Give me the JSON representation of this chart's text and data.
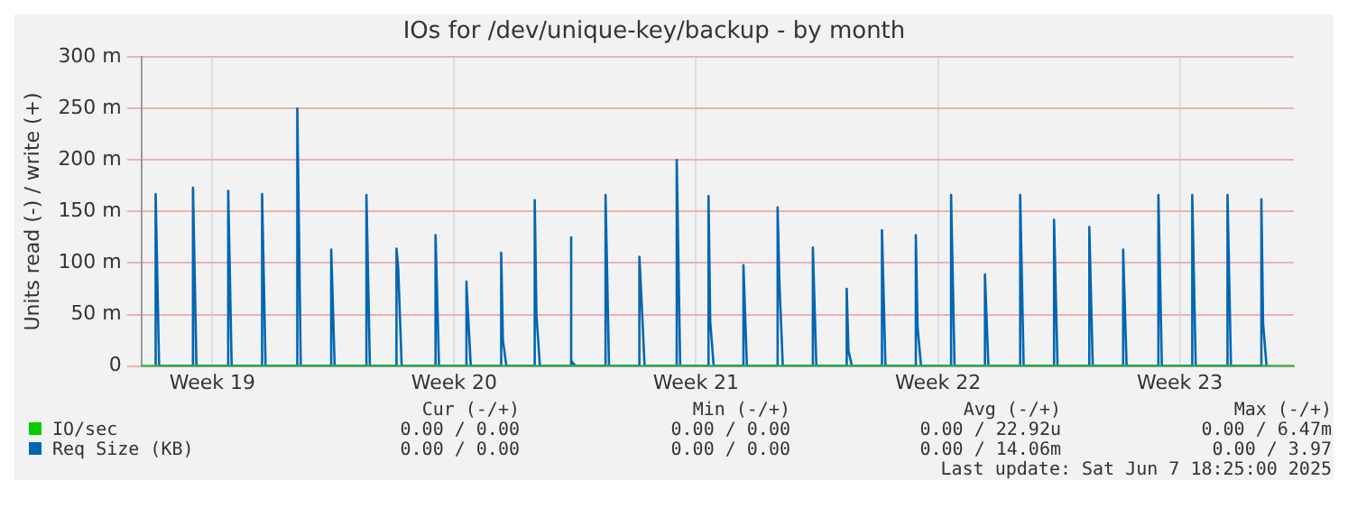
{
  "chart_data": {
    "type": "line",
    "title": "IOs for /dev/unique-key/backup - by month",
    "ylabel": "Units read (-) / write (+)",
    "xlim": [
      "2025-05-05T10:48",
      "2025-06-07T19:12"
    ],
    "xticks": [
      {
        "value": "2025-05-07T12:00",
        "label": "Week 19"
      },
      {
        "value": "2025-05-14T12:00",
        "label": "Week 20"
      },
      {
        "value": "2025-05-21T12:00",
        "label": "Week 21"
      },
      {
        "value": "2025-05-28T12:00",
        "label": "Week 22"
      },
      {
        "value": "2025-06-04T12:00",
        "label": "Week 23"
      }
    ],
    "ylim": [
      0,
      300
    ],
    "yticks": [
      0,
      {
        "value": 50,
        "label": "50 m"
      },
      {
        "value": 100,
        "label": "100 m"
      },
      {
        "value": 150,
        "label": "150 m"
      },
      {
        "value": 200,
        "label": "200 m"
      },
      {
        "value": 250,
        "label": "250 m"
      },
      {
        "value": 300,
        "label": "300 m"
      }
    ],
    "grid": true,
    "marker": "none",
    "line_style": "solid",
    "series": [
      {
        "name": "IO/sec",
        "color": "#00cc00",
        "x": [
          "2025-05-05T10:48",
          "2025-06-07T19:12"
        ],
        "values": [
          0,
          0
        ]
      },
      {
        "name": "Req Size (KB)",
        "color": "#0066b3",
        "x": [
          "2025-05-05T20:38",
          "2025-05-05T20:38",
          "2025-05-05T23:02",
          "2025-05-06T22:34",
          "2025-05-06T22:34",
          "2025-05-07T00:58",
          "2025-05-07T23:02",
          "2025-05-07T23:02",
          "2025-05-08T01:26",
          "2025-05-08T22:34",
          "2025-05-08T22:34",
          "2025-05-09T00:58",
          "2025-05-09T23:02",
          "2025-05-09T23:02",
          "2025-05-10T01:26",
          "2025-05-10T22:34",
          "2025-05-10T22:34",
          "2025-05-11T00:58",
          "2025-05-11T23:02",
          "2025-05-11T23:02",
          "2025-05-12T01:26",
          "2025-05-12T19:55",
          "2025-05-12T19:55",
          "2025-05-12T21:07",
          "2025-05-12T23:31",
          "2025-05-13T23:02",
          "2025-05-13T23:02",
          "2025-05-14T01:26",
          "2025-05-14T19:55",
          "2025-05-14T19:55",
          "2025-05-14T21:07",
          "2025-05-14T23:31",
          "2025-05-15T20:38",
          "2025-05-15T20:38",
          "2025-05-15T21:50",
          "2025-05-16T00:14",
          "2025-05-16T19:55",
          "2025-05-16T19:55",
          "2025-05-16T21:07",
          "2025-05-16T23:31",
          "2025-05-17T20:38",
          "2025-05-17T20:38",
          "2025-05-17T21:50",
          "2025-05-18T00:14",
          "2025-05-18T21:07",
          "2025-05-18T21:07",
          "2025-05-18T23:31",
          "2025-05-19T20:38",
          "2025-05-19T20:38",
          "2025-05-19T21:50",
          "2025-05-20T00:14",
          "2025-05-20T22:34",
          "2025-05-20T22:34",
          "2025-05-21T00:58",
          "2025-05-21T20:38",
          "2025-05-21T20:38",
          "2025-05-21T21:50",
          "2025-05-22T00:14",
          "2025-05-22T20:53",
          "2025-05-22T20:53",
          "2025-05-22T23:17",
          "2025-05-23T20:38",
          "2025-05-23T20:38",
          "2025-05-23T21:50",
          "2025-05-24T00:14",
          "2025-05-24T21:07",
          "2025-05-24T21:07",
          "2025-05-24T23:31",
          "2025-05-25T20:38",
          "2025-05-25T20:38",
          "2025-05-25T21:50",
          "2025-05-26T00:14",
          "2025-05-26T21:07",
          "2025-05-26T21:07",
          "2025-05-26T23:31",
          "2025-05-27T20:38",
          "2025-05-27T20:38",
          "2025-05-27T21:50",
          "2025-05-28T00:14",
          "2025-05-28T21:07",
          "2025-05-28T21:07",
          "2025-05-28T23:31",
          "2025-05-29T20:38",
          "2025-05-29T20:38",
          "2025-05-29T23:02",
          "2025-05-30T21:07",
          "2025-05-30T21:07",
          "2025-05-30T23:31",
          "2025-05-31T20:38",
          "2025-05-31T20:38",
          "2025-05-31T23:02",
          "2025-06-01T21:07",
          "2025-06-01T21:07",
          "2025-06-01T23:31",
          "2025-06-02T20:38",
          "2025-06-02T20:38",
          "2025-06-02T23:02",
          "2025-06-03T21:07",
          "2025-06-03T21:07",
          "2025-06-03T23:31",
          "2025-06-04T20:38",
          "2025-06-04T20:38",
          "2025-06-04T23:02",
          "2025-06-05T21:07",
          "2025-06-05T21:07",
          "2025-06-05T23:31",
          "2025-06-06T20:38",
          "2025-06-06T20:38",
          "2025-06-06T21:50",
          "2025-06-07T00:14"
        ],
        "values": [
          0,
          167,
          0,
          0,
          173,
          0,
          0,
          170,
          0,
          0,
          167,
          0,
          0,
          250,
          0,
          0,
          113,
          0,
          0,
          166,
          0,
          0,
          114,
          95,
          0,
          0,
          127,
          0,
          0,
          82,
          79,
          0,
          0,
          110,
          25,
          0,
          0,
          161,
          50,
          0,
          0,
          125,
          5,
          0,
          0,
          166,
          0,
          0,
          106,
          72,
          0,
          0,
          200,
          0,
          0,
          165,
          43,
          0,
          0,
          98,
          0,
          0,
          154,
          82,
          0,
          0,
          115,
          0,
          0,
          75,
          15,
          0,
          0,
          132,
          0,
          0,
          127,
          38,
          0,
          0,
          166,
          0,
          0,
          89,
          0,
          0,
          166,
          0,
          0,
          142,
          0,
          0,
          135,
          0,
          0,
          113,
          0,
          0,
          166,
          0,
          0,
          166,
          0,
          0,
          166,
          0,
          0,
          162,
          41,
          0
        ]
      }
    ],
    "legend": "bottom",
    "annotations": [
      "Cur (-/+)",
      "Min (-/+)",
      "Avg (-/+)",
      "Max (-/+)",
      "0.00 / 0.00",
      "0.00 / 0.00",
      "0.00 / 22.92u",
      "0.00 / 6.47m",
      "0.00 / 0.00",
      "0.00 / 0.00",
      "0.00 / 14.06m",
      "0.00 / 3.97",
      "Last update: Sat Jun 7 18:25:00 2025"
    ]
  }
}
